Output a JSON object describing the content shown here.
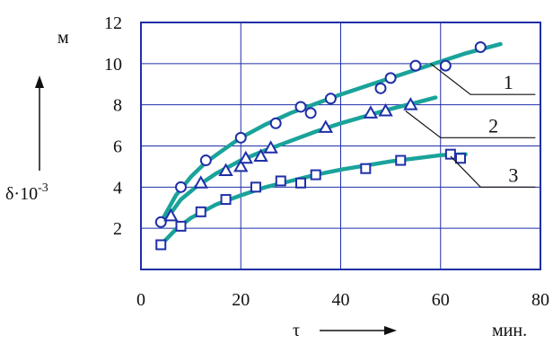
{
  "chart_data": {
    "type": "scatter",
    "xlim": [
      0,
      80
    ],
    "ylim": [
      0,
      12
    ],
    "x_ticks": [
      0,
      20,
      40,
      60,
      80
    ],
    "y_ticks": [
      2,
      4,
      6,
      8,
      10,
      12
    ],
    "x_tick_labels": [
      "0",
      "20",
      "40",
      "60",
      "80"
    ],
    "y_tick_labels": [
      "2",
      "4",
      "6",
      "8",
      "10",
      "12"
    ],
    "xlabel": "τ",
    "xunit": "мин.",
    "ylabel": "δ·10",
    "ylabel_exp": "-3",
    "yunit": "м",
    "grid": true,
    "colors": {
      "curve": "#1aa39a",
      "marker": "#1f2fa8"
    },
    "series": [
      {
        "label": "1",
        "marker": "circle",
        "points": [
          [
            4,
            2.3
          ],
          [
            8,
            4.0
          ],
          [
            13,
            5.3
          ],
          [
            20,
            6.4
          ],
          [
            27,
            7.1
          ],
          [
            32,
            7.9
          ],
          [
            34,
            7.6
          ],
          [
            38,
            8.3
          ],
          [
            48,
            8.8
          ],
          [
            50,
            9.3
          ],
          [
            55,
            9.9
          ],
          [
            61,
            9.9
          ],
          [
            68,
            10.8
          ]
        ],
        "curve": [
          [
            4,
            2.3
          ],
          [
            7,
            3.6
          ],
          [
            10,
            4.5
          ],
          [
            13,
            5.2
          ],
          [
            17,
            5.9
          ],
          [
            20,
            6.4
          ],
          [
            25,
            7.05
          ],
          [
            30,
            7.6
          ],
          [
            35,
            8.05
          ],
          [
            40,
            8.5
          ],
          [
            45,
            8.9
          ],
          [
            50,
            9.3
          ],
          [
            55,
            9.7
          ],
          [
            60,
            10.1
          ],
          [
            65,
            10.5
          ],
          [
            72,
            10.95
          ]
        ]
      },
      {
        "label": "2",
        "marker": "triangle",
        "points": [
          [
            6,
            2.6
          ],
          [
            12,
            4.2
          ],
          [
            17,
            4.8
          ],
          [
            20,
            5.0
          ],
          [
            21,
            5.4
          ],
          [
            24,
            5.5
          ],
          [
            26,
            5.9
          ],
          [
            37,
            6.9
          ],
          [
            46,
            7.6
          ],
          [
            49,
            7.7
          ],
          [
            54,
            8.0
          ]
        ],
        "curve": [
          [
            5,
            2.4
          ],
          [
            8,
            3.4
          ],
          [
            11,
            4.0
          ],
          [
            15,
            4.65
          ],
          [
            20,
            5.3
          ],
          [
            25,
            5.8
          ],
          [
            30,
            6.25
          ],
          [
            35,
            6.7
          ],
          [
            40,
            7.1
          ],
          [
            45,
            7.45
          ],
          [
            50,
            7.8
          ],
          [
            55,
            8.1
          ],
          [
            59,
            8.35
          ]
        ]
      },
      {
        "label": "3",
        "marker": "square",
        "points": [
          [
            4,
            1.2
          ],
          [
            8,
            2.1
          ],
          [
            12,
            2.8
          ],
          [
            17,
            3.4
          ],
          [
            23,
            4.0
          ],
          [
            28,
            4.3
          ],
          [
            32,
            4.2
          ],
          [
            35,
            4.6
          ],
          [
            45,
            4.9
          ],
          [
            52,
            5.3
          ],
          [
            62,
            5.6
          ],
          [
            64,
            5.4
          ]
        ],
        "curve": [
          [
            4,
            1.2
          ],
          [
            7,
            1.95
          ],
          [
            10,
            2.5
          ],
          [
            15,
            3.15
          ],
          [
            20,
            3.6
          ],
          [
            25,
            4.0
          ],
          [
            30,
            4.3
          ],
          [
            35,
            4.6
          ],
          [
            40,
            4.85
          ],
          [
            45,
            5.05
          ],
          [
            50,
            5.25
          ],
          [
            55,
            5.4
          ],
          [
            60,
            5.55
          ],
          [
            65,
            5.6
          ]
        ]
      }
    ],
    "label_leaders": [
      {
        "label": "1",
        "from": [
          58,
          10.0
        ],
        "mid": [
          66,
          8.5
        ],
        "to": [
          79,
          8.5
        ]
      },
      {
        "label": "2",
        "from": [
          53,
          7.7
        ],
        "mid": [
          60,
          6.4
        ],
        "to": [
          79,
          6.4
        ]
      },
      {
        "label": "3",
        "from": [
          62,
          5.5
        ],
        "mid": [
          68,
          4.0
        ],
        "to": [
          79,
          4.0
        ]
      }
    ]
  }
}
